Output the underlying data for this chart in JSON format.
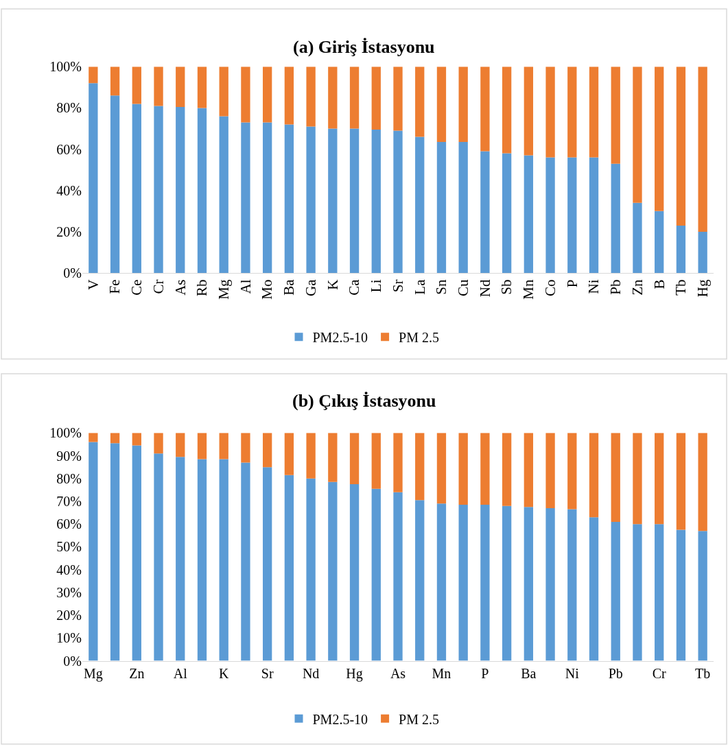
{
  "chart_data": [
    {
      "type": "bar",
      "stacked": true,
      "title": "(a) Giriş İstasyonu",
      "legend": "bottom",
      "grid": false,
      "categories": [
        "V",
        "Fe",
        "Ce",
        "Cr",
        "As",
        "Rb",
        "Mg",
        "Al",
        "Mo",
        "Ba",
        "Ga",
        "K",
        "Ca",
        "Li",
        "Sr",
        "La",
        "Sn",
        "Cu",
        "Nd",
        "Sb",
        "Mn",
        "Co",
        "P",
        "Ni",
        "Pb",
        "Zn",
        "B",
        "Tb",
        "Hg"
      ],
      "series": [
        {
          "name": "PM2.5-10",
          "color": "#5b9bd5",
          "values": [
            92,
            86,
            82,
            81,
            80.5,
            80,
            76,
            73,
            73,
            72,
            71,
            70,
            70,
            69.5,
            69,
            66,
            63.5,
            63.5,
            59,
            58,
            57,
            56,
            56,
            56,
            53,
            34,
            30,
            23,
            20
          ]
        },
        {
          "name": "PM 2.5",
          "color": "#ed7d31",
          "values": [
            8,
            14,
            18,
            19,
            19.5,
            20,
            24,
            27,
            27,
            28,
            29,
            30,
            30,
            30.5,
            31,
            34,
            36.5,
            36.5,
            41,
            42,
            43,
            44,
            44,
            44,
            47,
            66,
            70,
            77,
            80
          ]
        }
      ],
      "ylim": [
        0,
        100
      ],
      "yticks": [
        {
          "value": 0,
          "label": "0%"
        },
        {
          "value": 20,
          "label": "20%"
        },
        {
          "value": 40,
          "label": "40%"
        },
        {
          "value": 60,
          "label": "60%"
        },
        {
          "value": 80,
          "label": "80%"
        },
        {
          "value": 100,
          "label": "100%"
        }
      ]
    },
    {
      "type": "bar",
      "stacked": true,
      "title": "(b) Çıkış İstasyonu",
      "legend": "bottom",
      "grid": false,
      "categories": [
        "Mg",
        null,
        "Zn",
        null,
        "Al",
        null,
        "K",
        null,
        "Sr",
        null,
        "Nd",
        null,
        "Hg",
        null,
        "As",
        null,
        "Mn",
        null,
        "P",
        null,
        "Ba",
        null,
        "Ni",
        null,
        "Pb",
        null,
        "Cr",
        null,
        "Tb"
      ],
      "series": [
        {
          "name": "PM2.5-10",
          "color": "#5b9bd5",
          "values": [
            96,
            95.5,
            94.5,
            91,
            89.5,
            88.5,
            88.5,
            87,
            85,
            81.5,
            80,
            78.5,
            77.5,
            75.5,
            74,
            70.5,
            69,
            68.5,
            68.5,
            68,
            67.5,
            67,
            66.5,
            63,
            61,
            60,
            60,
            57.5,
            57
          ]
        },
        {
          "name": "PM 2.5",
          "color": "#ed7d31",
          "values": [
            4,
            4.5,
            5.5,
            9,
            10.5,
            11.5,
            11.5,
            13,
            15,
            18.5,
            20,
            21.5,
            22.5,
            24.5,
            26,
            29.5,
            31,
            31.5,
            31.5,
            32,
            32.5,
            33,
            33.5,
            37,
            39,
            40,
            40,
            42.5,
            43
          ]
        }
      ],
      "ylim": [
        0,
        100
      ],
      "yticks": [
        {
          "value": 0,
          "label": "0%"
        },
        {
          "value": 10,
          "label": "10%"
        },
        {
          "value": 20,
          "label": "20%"
        },
        {
          "value": 30,
          "label": "30%"
        },
        {
          "value": 40,
          "label": "40%"
        },
        {
          "value": 50,
          "label": "50%"
        },
        {
          "value": 60,
          "label": "60%"
        },
        {
          "value": 70,
          "label": "70%"
        },
        {
          "value": 80,
          "label": "80%"
        },
        {
          "value": 90,
          "label": "90%"
        },
        {
          "value": 100,
          "label": "100%"
        }
      ]
    }
  ]
}
